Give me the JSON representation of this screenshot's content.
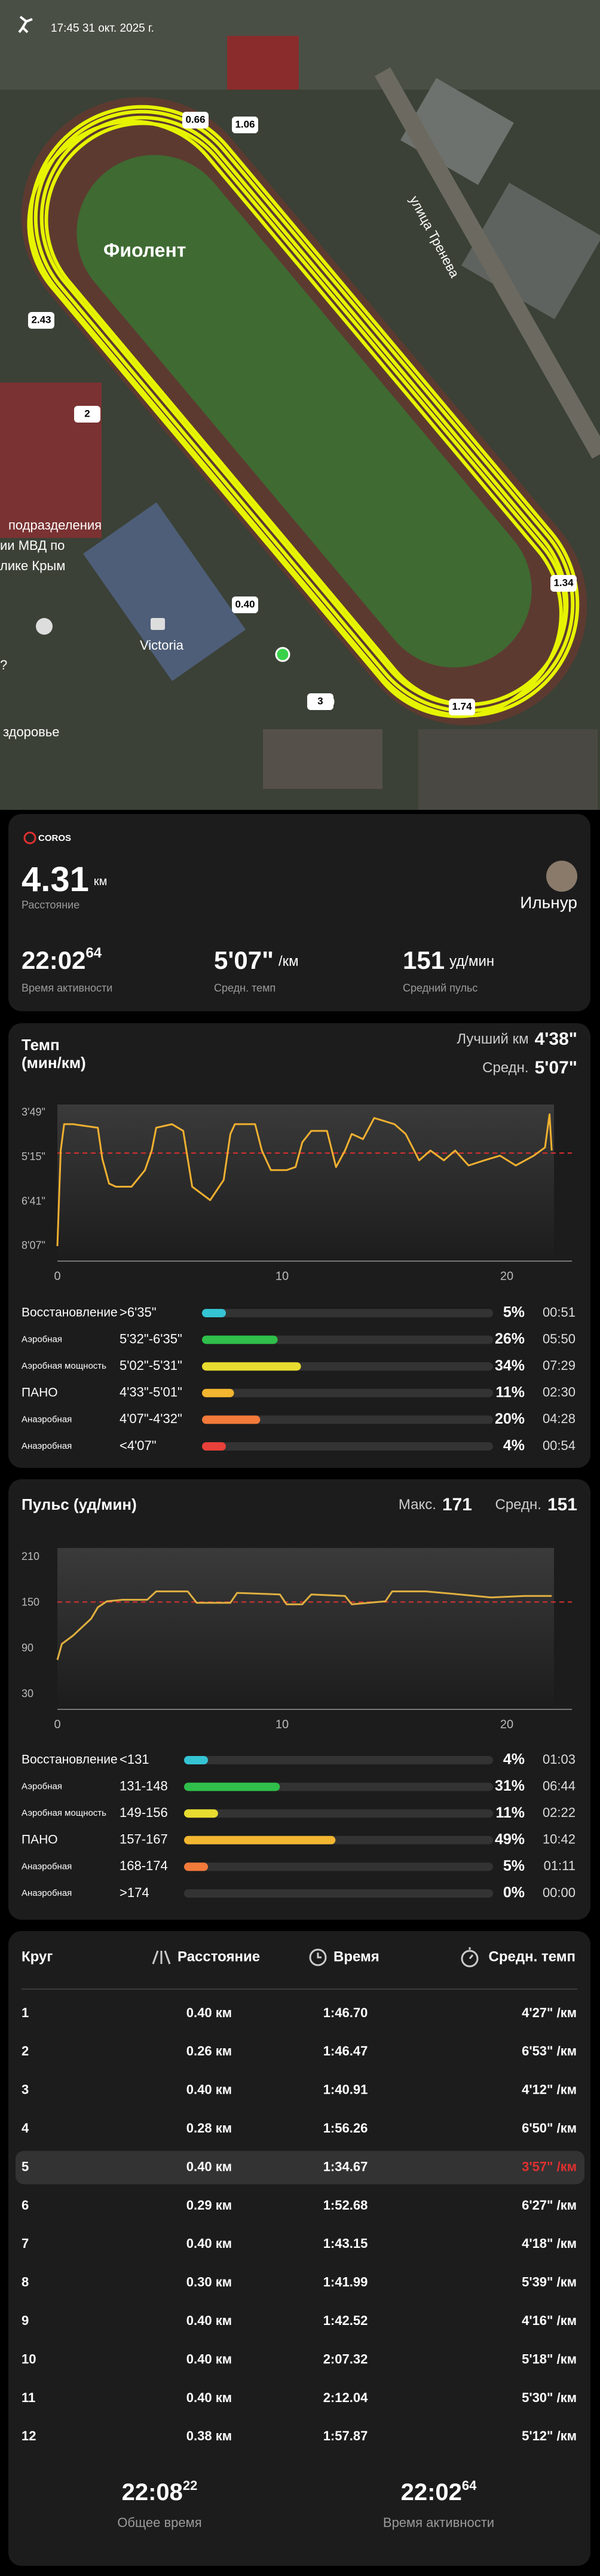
{
  "status_bar": {
    "time": "17:45 31 окт. 2025 г."
  },
  "map": {
    "places": [
      "Фиолент",
      "улица Тренева",
      "подразделения",
      "ии МВД по",
      "лике Крым",
      "Victoria",
      "здоровье",
      "?"
    ],
    "markers": [
      "0.66",
      "1.06",
      "2.43",
      "2",
      "0.40",
      "1.34",
      "1.74",
      "3"
    ]
  },
  "summary": {
    "brand": "COROS",
    "distance": "4.31",
    "distance_unit": "км",
    "distance_label": "Расстояние",
    "user": "Ильнур",
    "active_time": "22:02",
    "active_time_sub": "64",
    "active_time_label": "Время активности",
    "pace": "5'07\"",
    "pace_unit": "/км",
    "pace_label": "Средн. темп",
    "hr": "151",
    "hr_unit": "уд/мин",
    "hr_label": "Средний пульс"
  },
  "chart_data": [
    {
      "type": "line",
      "title": "Темп",
      "unit": "(мин/км)",
      "best_label": "Лучший км",
      "best_value": "4'38\"",
      "avg_label": "Средн.",
      "avg_value": "5'07\"",
      "x": [
        0,
        0.15,
        0.3,
        0.7,
        1.8,
        2.0,
        2.3,
        2.6,
        3.3,
        3.9,
        4.2,
        4.4,
        5.1,
        5.6,
        5.8,
        6.0,
        6.8,
        7.4,
        7.7,
        7.9,
        8.8,
        9.1,
        9.5,
        10.2,
        10.6,
        10.9,
        11.3,
        12.0,
        12.4,
        12.8,
        13.1,
        13.6,
        14.1,
        15.0,
        15.5,
        16.1,
        16.6,
        17.2,
        17.7,
        18.3,
        19.0,
        19.7,
        20.4,
        21.2,
        21.7,
        21.9,
        22.0
      ],
      "series": [
        {
          "color": "#f0b030",
          "values": [
            487,
            302,
            251,
            251,
            258,
            318,
            366,
            372,
            372,
            340,
            302,
            258,
            251,
            264,
            318,
            372,
            398,
            359,
            270,
            251,
            251,
            302,
            340,
            340,
            334,
            286,
            264,
            264,
            334,
            302,
            270,
            280,
            239,
            251,
            270,
            321,
            302,
            321,
            302,
            331,
            321,
            312,
            331,
            312,
            296,
            232,
            302
          ]
        }
      ],
      "xlim": [
        0,
        22.1
      ],
      "xticks": [
        0,
        10,
        20
      ],
      "ylim": [
        516,
        213
      ],
      "yticks": [
        {
          "value": 229,
          "label": "3'49\""
        },
        {
          "value": 315,
          "label": "5'15\""
        },
        {
          "value": 401,
          "label": "6'41\""
        },
        {
          "value": 487,
          "label": "8'07\""
        }
      ],
      "grid": false,
      "reference_line": {
        "value": 307,
        "color": "#e03030"
      }
    },
    {
      "type": "line",
      "title": "Пульс (уд/мин)",
      "max_label": "Макс.",
      "max_value": "171",
      "avg_label": "Средн.",
      "avg_value": "151",
      "x": [
        0,
        0.2,
        0.7,
        1.5,
        1.8,
        2.2,
        2.9,
        4.0,
        4.4,
        5.8,
        6.2,
        7.7,
        8.0,
        9.9,
        10.2,
        10.9,
        11.3,
        12.8,
        13.1,
        14.6,
        14.9,
        16.4,
        17.9,
        19.3,
        20.8,
        22.0
      ],
      "series": [
        {
          "color": "#e0b040",
          "values": [
            75,
            96,
            107,
            129,
            144,
            152,
            154,
            154,
            165,
            165,
            150,
            150,
            163,
            161,
            148,
            148,
            161,
            159,
            148,
            152,
            165,
            165,
            161,
            157,
            159,
            159
          ]
        }
      ],
      "xlim": [
        0,
        22.1
      ],
      "xticks": [
        0,
        10,
        20
      ],
      "ylim": [
        10,
        222
      ],
      "yticks": [
        210,
        150,
        90,
        30
      ],
      "grid": false,
      "reference_line": {
        "value": 151,
        "color": "#e03030"
      }
    }
  ],
  "pace_zones": [
    {
      "name": "Восстановление",
      "range": ">6'35\"",
      "percent": 5,
      "percent_label": "5%",
      "time": "00:51",
      "color": "#35c4d4"
    },
    {
      "name": "Аэробная",
      "range": "5'32\"-6'35\"",
      "percent": 26,
      "percent_label": "26%",
      "time": "05:50",
      "color": "#2fbf4a"
    },
    {
      "name": "Аэробная мощность",
      "range": "5'02\"-5'31\"",
      "percent": 34,
      "percent_label": "34%",
      "time": "07:29",
      "color": "#e8dc30"
    },
    {
      "name": "ПАНО",
      "range": "4'33\"-5'01\"",
      "percent": 11,
      "percent_label": "11%",
      "time": "02:30",
      "color": "#f2b630"
    },
    {
      "name": "Анаэробная",
      "range": "4'07\"-4'32\"",
      "percent": 20,
      "percent_label": "20%",
      "time": "04:28",
      "color": "#f27a3a"
    },
    {
      "name": "Анаэробная",
      "range": "<4'07\"",
      "percent": 4,
      "percent_label": "4%",
      "time": "00:54",
      "color": "#e8403a"
    }
  ],
  "hr_zones": [
    {
      "name": "Восстановление",
      "range": "<131",
      "percent": 4,
      "percent_label": "4%",
      "time": "01:03",
      "color": "#35c4d4"
    },
    {
      "name": "Аэробная",
      "range": "131-148",
      "percent": 31,
      "percent_label": "31%",
      "time": "06:44",
      "color": "#2fbf4a"
    },
    {
      "name": "Аэробная мощность",
      "range": "149-156",
      "percent": 11,
      "percent_label": "11%",
      "time": "02:22",
      "color": "#e8dc30"
    },
    {
      "name": "ПАНО",
      "range": "157-167",
      "percent": 49,
      "percent_label": "49%",
      "time": "10:42",
      "color": "#f2b630"
    },
    {
      "name": "Анаэробная",
      "range": "168-174",
      "percent": 5,
      "percent_label": "5%",
      "time": "01:11",
      "color": "#f27a3a"
    },
    {
      "name": "Анаэробная",
      "range": ">174",
      "percent": 0,
      "percent_label": "0%",
      "time": "00:00",
      "color": "#e8403a"
    }
  ],
  "laps": {
    "headers": [
      "Круг",
      "Расстояние",
      "Время",
      "Средн. темп"
    ],
    "rows": [
      [
        "1",
        "0.40 км",
        "1:46.70",
        "4'27\" /км"
      ],
      [
        "2",
        "0.26 км",
        "1:46.47",
        "6'53\" /км"
      ],
      [
        "3",
        "0.40 км",
        "1:40.91",
        "4'12\" /км"
      ],
      [
        "4",
        "0.28 км",
        "1:56.26",
        "6'50\" /км"
      ],
      [
        "5",
        "0.40 км",
        "1:34.67",
        "3'57\" /км"
      ],
      [
        "6",
        "0.29 км",
        "1:52.68",
        "6'27\" /км"
      ],
      [
        "7",
        "0.40 км",
        "1:43.15",
        "4'18\" /км"
      ],
      [
        "8",
        "0.30 км",
        "1:41.99",
        "5'39\" /км"
      ],
      [
        "9",
        "0.40 км",
        "1:42.52",
        "4'16\" /км"
      ],
      [
        "10",
        "0.40 км",
        "2:07.32",
        "5'18\" /км"
      ],
      [
        "11",
        "0.40 км",
        "2:12.04",
        "5'30\" /км"
      ],
      [
        "12",
        "0.38 км",
        "1:57.87",
        "5'12\" /км"
      ]
    ],
    "highlight_row": 4,
    "highlight_color": "#e03030",
    "total_time": "22:08",
    "total_time_sub": "22",
    "total_label": "Общее время",
    "active_time": "22:02",
    "active_time_sub": "64",
    "active_label": "Время активности"
  }
}
